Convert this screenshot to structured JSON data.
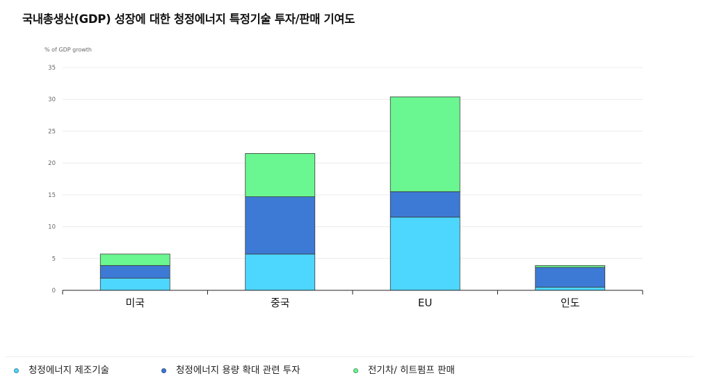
{
  "page": {
    "title": "국내총생산(GDP) 성장에 대한 청정에너지 특정기술 투자/판매 기여도"
  },
  "chart_data": {
    "type": "bar",
    "stacked": true,
    "title": "국내총생산(GDP) 성장에 대한 청정에너지 특정기술 투자/판매 기여도",
    "ylabel": "% of GDP growth",
    "xlabel": "",
    "ylim": [
      0,
      35
    ],
    "yticks": [
      0,
      5,
      10,
      15,
      20,
      25,
      30,
      35
    ],
    "grid": true,
    "legend_position": "bottom",
    "categories": [
      "미국",
      "중국",
      "EU",
      "인도"
    ],
    "series": [
      {
        "name": "청정에너지 제조기술",
        "color": "#4dd7fe",
        "values": [
          1.9,
          5.7,
          11.5,
          0.5
        ]
      },
      {
        "name": "청정에너지 용량 확대 관련 투자",
        "color": "#3d7ad5",
        "values": [
          2.0,
          9.0,
          4.0,
          3.1
        ]
      },
      {
        "name": "전기차/ 히트펌프 판매",
        "color": "#6af690",
        "values": [
          1.8,
          6.8,
          14.9,
          0.3
        ]
      }
    ]
  }
}
